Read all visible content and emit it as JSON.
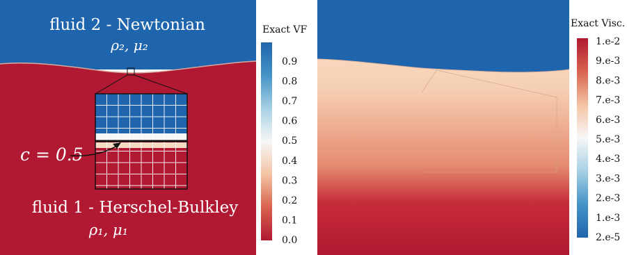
{
  "left_panel": {
    "upper_fluid_label": "fluid 2 - Newtonian",
    "upper_fluid_props": "ρ₂, μ₂",
    "lower_fluid_label": "fluid 1 - Herschel-Bulkley",
    "lower_fluid_props": "ρ₁, μ₁",
    "contour_label": "c = 0.5",
    "colors": {
      "fluid2": "#1f65ad",
      "fluid1": "#b11831",
      "interface_band": "#f6dcc4",
      "mesh_line": "#ffffff"
    }
  },
  "vf_colorbar": {
    "title": "Exact VF",
    "ticks": [
      "0.9",
      "0.8",
      "0.7",
      "0.6",
      "0.5",
      "0.4",
      "0.3",
      "0.2",
      "0.1",
      "0.0"
    ],
    "gradient": [
      "#1f65ad",
      "#4493c7",
      "#a7d0e4",
      "#f7f7f7",
      "#f4c3a3",
      "#d8634e",
      "#b11831"
    ]
  },
  "visc_colorbar": {
    "title": "Exact Visc.",
    "ticks": [
      "1.e-2",
      "9.e-3",
      "8.e-3",
      "7.e-3",
      "6.e-3",
      "5.e-3",
      "4.e-3",
      "3.e-3",
      "2.e-3",
      "1.e-3",
      "2.e-5"
    ],
    "gradient": [
      "#b11831",
      "#d8634e",
      "#f4c3a3",
      "#f7f7f7",
      "#a7d0e4",
      "#4493c7",
      "#1f65ad"
    ]
  },
  "right_panel": {
    "colors": {
      "top": "#1f65ad",
      "field_top": "#fbe6d2",
      "field_mid": "#f1b492",
      "field_low": "#c93a3e",
      "bottom": "#b11831"
    }
  }
}
